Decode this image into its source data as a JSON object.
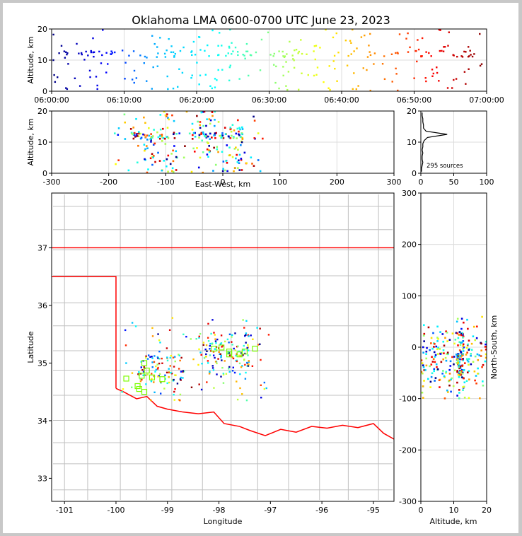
{
  "title": "Oklahoma LMA 0600-0700 UTC June 23, 2023",
  "colors": {
    "state_border": "#ff0000",
    "county_lines": "#c0c0c0",
    "station_marker": "#7cfc00",
    "time_colormap": [
      "#000080",
      "#0000ff",
      "#00bfff",
      "#00ffff",
      "#7fff7f",
      "#ffff00",
      "#ff8000",
      "#ff0000",
      "#800000"
    ]
  },
  "chart_data": [
    {
      "id": "time-altitude",
      "type": "scatter",
      "xlabel": "",
      "ylabel": "Altitude, km",
      "xlim": [
        "06:00:00",
        "07:00:00"
      ],
      "ylim": [
        0,
        20
      ],
      "xticks": [
        "06:00:00",
        "06:10:00",
        "06:20:00",
        "06:30:00",
        "06:40:00",
        "06:50:00",
        "07:00:00"
      ],
      "yticks": [
        0,
        10,
        20
      ],
      "grid": true
    },
    {
      "id": "ew-altitude",
      "type": "scatter",
      "xlabel": "East-West, km",
      "ylabel": "Altitude, km",
      "xlim": [
        -300,
        300
      ],
      "ylim": [
        0,
        20
      ],
      "xticks": [
        -300,
        -200,
        -100,
        0,
        100,
        200,
        300
      ],
      "yticks": [
        0,
        10,
        20
      ],
      "grid": true
    },
    {
      "id": "altitude-histogram",
      "type": "line",
      "xlim": [
        0,
        100
      ],
      "ylim": [
        0,
        20
      ],
      "xticks": [
        0,
        50,
        100
      ],
      "yticks": [
        0,
        10,
        20
      ],
      "annotation": "295 sources",
      "counts_by_km": [
        [
          0.5,
          1
        ],
        [
          1.5,
          1
        ],
        [
          2.5,
          2
        ],
        [
          3.5,
          3
        ],
        [
          4.5,
          2
        ],
        [
          5.5,
          2
        ],
        [
          6.5,
          3
        ],
        [
          7.5,
          2
        ],
        [
          8.5,
          3
        ],
        [
          9.5,
          3
        ],
        [
          10.5,
          5
        ],
        [
          11.5,
          10
        ],
        [
          12.5,
          40
        ],
        [
          13.5,
          8
        ],
        [
          14.5,
          4
        ],
        [
          15.5,
          4
        ],
        [
          16.5,
          3
        ],
        [
          17.5,
          3
        ],
        [
          18.5,
          2
        ],
        [
          19.5,
          2
        ]
      ]
    },
    {
      "id": "plan-view",
      "type": "scatter",
      "xlabel": "Longitude",
      "ylabel": "Latitude",
      "xlim": [
        -101.25,
        -94.6
      ],
      "ylim": [
        32.6,
        37.95
      ],
      "xticks": [
        -101,
        -100,
        -99,
        -98,
        -97,
        -96,
        -95
      ],
      "yticks": [
        33,
        34,
        35,
        36,
        37
      ],
      "grid": false,
      "stations": [
        [
          -99.8,
          34.73
        ],
        [
          -99.5,
          34.78
        ],
        [
          -99.58,
          34.6
        ],
        [
          -99.55,
          34.55
        ],
        [
          -99.45,
          34.5
        ],
        [
          -99.45,
          35.0
        ],
        [
          -99.4,
          34.87
        ],
        [
          -99.3,
          34.75
        ],
        [
          -99.1,
          34.72
        ],
        [
          -98.1,
          35.25
        ],
        [
          -97.95,
          35.27
        ],
        [
          -97.8,
          35.2
        ],
        [
          -97.8,
          35.15
        ],
        [
          -97.6,
          35.15
        ],
        [
          -97.5,
          35.2
        ],
        [
          -97.3,
          35.25
        ]
      ]
    },
    {
      "id": "altitude-ns",
      "type": "scatter",
      "xlabel": "Altitude, km",
      "ylabel": "North-South, km",
      "xlim": [
        0,
        20
      ],
      "ylim": [
        -300,
        300
      ],
      "xticks": [
        0,
        10,
        20
      ],
      "yticks": [
        -300,
        -200,
        -100,
        0,
        100,
        200,
        300
      ],
      "grid": true
    }
  ]
}
